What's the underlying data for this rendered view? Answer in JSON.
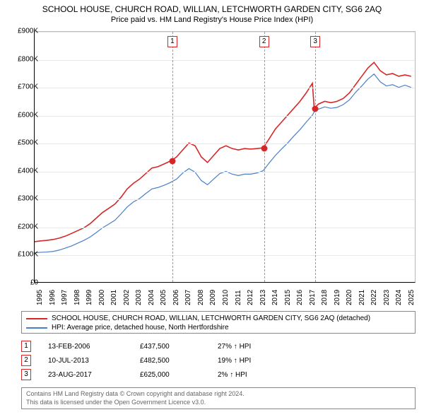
{
  "title": "SCHOOL HOUSE, CHURCH ROAD, WILLIAN, LETCHWORTH GARDEN CITY, SG6 2AQ",
  "subtitle": "Price paid vs. HM Land Registry's House Price Index (HPI)",
  "chart": {
    "type": "line",
    "xlim": [
      1995,
      2025.8
    ],
    "ylim": [
      0,
      900000
    ],
    "ytick_step": 100000,
    "yticks": [
      "£0",
      "£100K",
      "£200K",
      "£300K",
      "£400K",
      "£500K",
      "£600K",
      "£700K",
      "£800K",
      "£900K"
    ],
    "xticks": [
      "1995",
      "1996",
      "1997",
      "1998",
      "1999",
      "2000",
      "2001",
      "2002",
      "2003",
      "2004",
      "2005",
      "2006",
      "2007",
      "2008",
      "2009",
      "2010",
      "2011",
      "2012",
      "2013",
      "2014",
      "2015",
      "2016",
      "2017",
      "2018",
      "2019",
      "2020",
      "2021",
      "2022",
      "2023",
      "2024",
      "2025"
    ],
    "background_color": "#ffffff",
    "grid_color": "#e8e8e8",
    "series": [
      {
        "name": "SCHOOL HOUSE, CHURCH ROAD, WILLIAN, LETCHWORTH GARDEN CITY, SG6 2AQ (detached)",
        "color": "#d62728",
        "line_width": 1.6,
        "points": [
          [
            1995.0,
            145000
          ],
          [
            1995.5,
            148000
          ],
          [
            1996.0,
            150000
          ],
          [
            1996.5,
            153000
          ],
          [
            1997.0,
            158000
          ],
          [
            1997.5,
            165000
          ],
          [
            1998.0,
            175000
          ],
          [
            1998.5,
            185000
          ],
          [
            1999.0,
            195000
          ],
          [
            1999.5,
            210000
          ],
          [
            2000.0,
            230000
          ],
          [
            2000.5,
            250000
          ],
          [
            2001.0,
            265000
          ],
          [
            2001.5,
            280000
          ],
          [
            2002.0,
            305000
          ],
          [
            2002.5,
            335000
          ],
          [
            2003.0,
            355000
          ],
          [
            2003.5,
            370000
          ],
          [
            2004.0,
            390000
          ],
          [
            2004.5,
            410000
          ],
          [
            2005.0,
            415000
          ],
          [
            2005.5,
            425000
          ],
          [
            2006.12,
            437500
          ],
          [
            2006.5,
            450000
          ],
          [
            2007.0,
            475000
          ],
          [
            2007.5,
            500000
          ],
          [
            2008.0,
            490000
          ],
          [
            2008.5,
            450000
          ],
          [
            2009.0,
            430000
          ],
          [
            2009.5,
            455000
          ],
          [
            2010.0,
            480000
          ],
          [
            2010.5,
            490000
          ],
          [
            2011.0,
            480000
          ],
          [
            2011.5,
            475000
          ],
          [
            2012.0,
            480000
          ],
          [
            2012.5,
            478000
          ],
          [
            2013.0,
            480000
          ],
          [
            2013.52,
            482500
          ],
          [
            2014.0,
            515000
          ],
          [
            2014.5,
            550000
          ],
          [
            2015.0,
            575000
          ],
          [
            2015.5,
            600000
          ],
          [
            2016.0,
            625000
          ],
          [
            2016.5,
            650000
          ],
          [
            2017.0,
            680000
          ],
          [
            2017.5,
            715000
          ],
          [
            2017.65,
            625000
          ],
          [
            2018.0,
            640000
          ],
          [
            2018.5,
            650000
          ],
          [
            2019.0,
            645000
          ],
          [
            2019.5,
            650000
          ],
          [
            2020.0,
            660000
          ],
          [
            2020.5,
            680000
          ],
          [
            2021.0,
            710000
          ],
          [
            2021.5,
            740000
          ],
          [
            2022.0,
            770000
          ],
          [
            2022.5,
            790000
          ],
          [
            2023.0,
            760000
          ],
          [
            2023.5,
            745000
          ],
          [
            2024.0,
            750000
          ],
          [
            2024.5,
            740000
          ],
          [
            2025.0,
            745000
          ],
          [
            2025.5,
            740000
          ]
        ]
      },
      {
        "name": "HPI: Average price, detached house, North Hertfordshire",
        "color": "#4a7fc4",
        "line_width": 1.2,
        "points": [
          [
            1995.0,
            105000
          ],
          [
            1995.5,
            107000
          ],
          [
            1996.0,
            108000
          ],
          [
            1996.5,
            110000
          ],
          [
            1997.0,
            115000
          ],
          [
            1997.5,
            122000
          ],
          [
            1998.0,
            130000
          ],
          [
            1998.5,
            140000
          ],
          [
            1999.0,
            150000
          ],
          [
            1999.5,
            162000
          ],
          [
            2000.0,
            178000
          ],
          [
            2000.5,
            195000
          ],
          [
            2001.0,
            208000
          ],
          [
            2001.5,
            222000
          ],
          [
            2002.0,
            245000
          ],
          [
            2002.5,
            270000
          ],
          [
            2003.0,
            288000
          ],
          [
            2003.5,
            300000
          ],
          [
            2004.0,
            318000
          ],
          [
            2004.5,
            335000
          ],
          [
            2005.0,
            340000
          ],
          [
            2005.5,
            348000
          ],
          [
            2006.0,
            358000
          ],
          [
            2006.5,
            370000
          ],
          [
            2007.0,
            392000
          ],
          [
            2007.5,
            408000
          ],
          [
            2008.0,
            395000
          ],
          [
            2008.5,
            365000
          ],
          [
            2009.0,
            350000
          ],
          [
            2009.5,
            370000
          ],
          [
            2010.0,
            390000
          ],
          [
            2010.5,
            398000
          ],
          [
            2011.0,
            388000
          ],
          [
            2011.5,
            383000
          ],
          [
            2012.0,
            388000
          ],
          [
            2012.5,
            388000
          ],
          [
            2013.0,
            392000
          ],
          [
            2013.5,
            400000
          ],
          [
            2014.0,
            428000
          ],
          [
            2014.5,
            455000
          ],
          [
            2015.0,
            478000
          ],
          [
            2015.5,
            500000
          ],
          [
            2016.0,
            525000
          ],
          [
            2016.5,
            548000
          ],
          [
            2017.0,
            575000
          ],
          [
            2017.5,
            600000
          ],
          [
            2017.65,
            612000
          ],
          [
            2018.0,
            622000
          ],
          [
            2018.5,
            630000
          ],
          [
            2019.0,
            625000
          ],
          [
            2019.5,
            628000
          ],
          [
            2020.0,
            638000
          ],
          [
            2020.5,
            655000
          ],
          [
            2021.0,
            682000
          ],
          [
            2021.5,
            705000
          ],
          [
            2022.0,
            730000
          ],
          [
            2022.5,
            748000
          ],
          [
            2023.0,
            720000
          ],
          [
            2023.5,
            705000
          ],
          [
            2024.0,
            710000
          ],
          [
            2024.5,
            700000
          ],
          [
            2025.0,
            708000
          ],
          [
            2025.5,
            700000
          ]
        ]
      }
    ],
    "markers": [
      {
        "n": "1",
        "x": 2006.12,
        "y": 437500,
        "color": "#d62728"
      },
      {
        "n": "2",
        "x": 2013.52,
        "y": 482500,
        "color": "#d62728"
      },
      {
        "n": "3",
        "x": 2017.65,
        "y": 625000,
        "color": "#d62728"
      }
    ]
  },
  "legend": {
    "items": [
      {
        "color": "#d62728",
        "label": "SCHOOL HOUSE, CHURCH ROAD, WILLIAN, LETCHWORTH GARDEN CITY, SG6 2AQ (detached)"
      },
      {
        "color": "#4a7fc4",
        "label": "HPI: Average price, detached house, North Hertfordshire"
      }
    ]
  },
  "events": [
    {
      "n": "1",
      "color": "#d62728",
      "date": "13-FEB-2006",
      "price": "£437,500",
      "diff": "27% ↑ HPI"
    },
    {
      "n": "2",
      "color": "#d62728",
      "date": "10-JUL-2013",
      "price": "£482,500",
      "diff": "19% ↑ HPI"
    },
    {
      "n": "3",
      "color": "#d62728",
      "date": "23-AUG-2017",
      "price": "£625,000",
      "diff": "2% ↑ HPI"
    }
  ],
  "footer": {
    "line1": "Contains HM Land Registry data © Crown copyright and database right 2024.",
    "line2": "This data is licensed under the Open Government Licence v3.0."
  }
}
